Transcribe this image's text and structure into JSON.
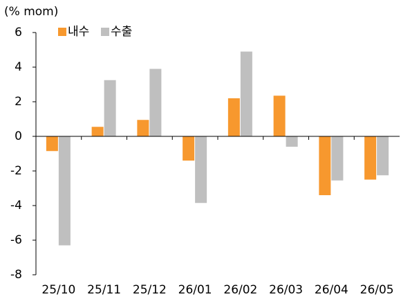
{
  "chart_data": {
    "type": "bar",
    "y_label": "(% mom)",
    "categories": [
      "25/10",
      "25/11",
      "25/12",
      "26/01",
      "26/02",
      "26/03",
      "26/04",
      "26/05"
    ],
    "series": [
      {
        "name": "내수",
        "color": "#f7982e",
        "values": [
          -0.85,
          0.55,
          0.95,
          -1.4,
          2.2,
          2.35,
          -3.4,
          -2.5
        ]
      },
      {
        "name": "수출",
        "color": "#bfbfbf",
        "values": [
          -6.3,
          3.25,
          3.9,
          -3.85,
          4.9,
          -0.6,
          -2.55,
          -2.25
        ]
      }
    ],
    "ylim": [
      -8,
      6
    ],
    "yticks": [
      -8,
      -6,
      -4,
      -2,
      0,
      2,
      4,
      6
    ]
  }
}
